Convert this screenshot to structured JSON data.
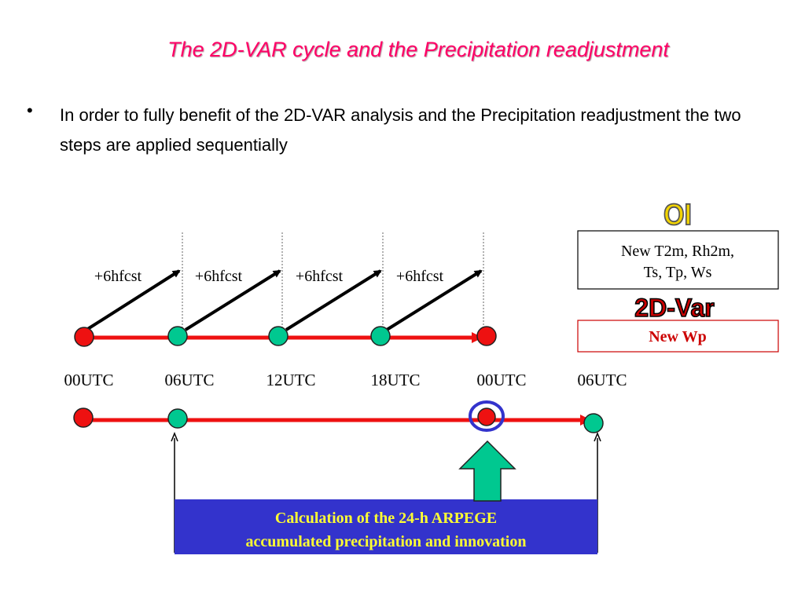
{
  "slide": {
    "title": "The 2D-VAR cycle and the Precipitation readjustment",
    "bullet": "In order to fully benefit of the 2D-VAR analysis and the Precipitation readjustment the two steps are applied sequentially"
  },
  "forecast_labels": [
    "+6hfcst",
    "+6hfcst",
    "+6hfcst",
    "+6hfcst"
  ],
  "time_labels": [
    "00UTC",
    "06UTC",
    "12UTC",
    "18UTC",
    "00UTC",
    "06UTC"
  ],
  "oi": {
    "heading": "OI",
    "box_line1": "New T2m, Rh2m,",
    "box_line2": "Ts, Tp, Ws"
  },
  "var2d": {
    "heading": "2D-Var",
    "box_text": "New Wp"
  },
  "calc_box": {
    "line1": "Calculation of the 24-h ARPEGE",
    "line2": "accumulated precipitation and innovation"
  },
  "colors": {
    "title": "#ff0066",
    "timeline": "#ee1111",
    "analysis_node": "#ee1111",
    "forecast_node": "#00c890",
    "highlight_ring": "#3333cc",
    "calc_box_fill": "#3333cc",
    "calc_box_text": "#ffff33",
    "up_arrow": "#00c890",
    "var2d_text": "#cc0000"
  }
}
